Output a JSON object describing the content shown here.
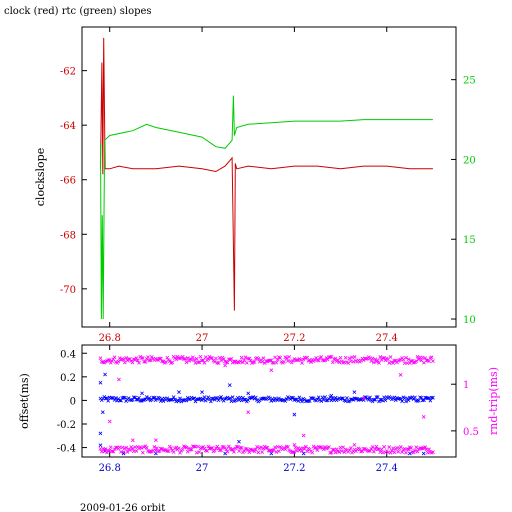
{
  "figure": {
    "title": "clock (red) rtc (green) slopes",
    "footer": "2009-01-26 orbit"
  },
  "chart_data": [
    {
      "type": "line",
      "title": "clock (red) rtc (green) slopes",
      "xlabel": "",
      "ylabel": "clockslope",
      "y2label": "",
      "xlim": [
        26.74,
        27.55
      ],
      "ylim": [
        -71.4,
        -60.4
      ],
      "y2lim": [
        9.5,
        28.3
      ],
      "x_ticks": [
        26.8,
        27,
        27.2,
        27.4
      ],
      "y_ticks": [
        -62,
        -64,
        -66,
        -68,
        -70
      ],
      "y2_ticks": [
        25,
        20,
        15,
        10
      ],
      "grid": false,
      "colors": {
        "axes": "#000000",
        "left_axis": "#cc0000",
        "right_axis": "#00cc00",
        "x_ticks": "#cc0000"
      },
      "series": [
        {
          "name": "clock",
          "axis": "left",
          "color": "#cc0000",
          "x": [
            26.78,
            26.783,
            26.785,
            26.787,
            26.79,
            26.8,
            26.82,
            26.85,
            26.9,
            26.95,
            27.0,
            27.03,
            27.05,
            27.065,
            27.07,
            27.072,
            27.075,
            27.1,
            27.15,
            27.2,
            27.25,
            27.3,
            27.35,
            27.4,
            27.45,
            27.5
          ],
          "y": [
            -65.6,
            -61.7,
            -65.8,
            -60.8,
            -65.6,
            -65.6,
            -65.5,
            -65.6,
            -65.6,
            -65.5,
            -65.6,
            -65.7,
            -65.5,
            -65.2,
            -70.8,
            -65.4,
            -65.6,
            -65.5,
            -65.6,
            -65.5,
            -65.5,
            -65.6,
            -65.5,
            -65.5,
            -65.6,
            -65.6
          ]
        },
        {
          "name": "rtc",
          "axis": "right",
          "color": "#00cc00",
          "x": [
            26.78,
            26.782,
            26.784,
            26.786,
            26.789,
            26.8,
            26.85,
            26.88,
            26.9,
            26.95,
            27.0,
            27.03,
            27.05,
            27.065,
            27.068,
            27.07,
            27.075,
            27.1,
            27.15,
            27.2,
            27.25,
            27.3,
            27.35,
            27.4,
            27.45,
            27.5
          ],
          "y": [
            21.0,
            10.0,
            16.5,
            10.0,
            21.2,
            21.5,
            21.8,
            22.2,
            22.0,
            21.7,
            21.4,
            20.8,
            20.7,
            21.2,
            24.0,
            21.5,
            22.0,
            22.2,
            22.3,
            22.4,
            22.4,
            22.4,
            22.5,
            22.5,
            22.5,
            22.5
          ]
        }
      ]
    },
    {
      "type": "scatter",
      "xlabel": "",
      "ylabel": "offset(ms)",
      "y2label": "rnd-trip(ms)",
      "xlim": [
        26.74,
        27.55
      ],
      "ylim": [
        -0.48,
        0.47
      ],
      "y2lim": [
        0.22,
        1.42
      ],
      "x_ticks": [
        26.8,
        27,
        27.2,
        27.4
      ],
      "y_ticks": [
        0.4,
        0.2,
        0,
        -0.2,
        -0.4
      ],
      "y2_ticks": [
        1,
        0.5
      ],
      "grid": false,
      "colors": {
        "axes": "#000000",
        "left_axis": "#000000",
        "right_axis": "#ff00ff",
        "x_ticks": "#0000cc"
      },
      "series": [
        {
          "name": "offset",
          "axis": "left",
          "color": "#0000ff",
          "marker": "x",
          "band": {
            "x_start": 26.78,
            "x_end": 27.5,
            "y_center": 0.01,
            "spread": 0.02
          },
          "outliers": {
            "x": [
              26.78,
              26.78,
              26.78,
              26.785,
              26.79,
              26.79,
              26.83,
              26.87,
              26.9,
              26.95,
              27.0,
              27.05,
              27.06,
              27.08,
              27.1,
              27.15,
              27.2,
              27.22,
              27.28,
              27.33,
              27.45,
              27.48
            ],
            "y": [
              -0.28,
              -0.38,
              0.15,
              -0.1,
              0.22,
              -0.43,
              -0.45,
              0.06,
              -0.45,
              0.07,
              0.07,
              -0.45,
              0.13,
              -0.35,
              0.06,
              -0.45,
              -0.12,
              -0.45,
              0.04,
              0.07,
              -0.45,
              -0.45
            ]
          }
        },
        {
          "name": "rnd-trip",
          "axis": "right",
          "color": "#ff00ff",
          "marker": "x",
          "bands": [
            {
              "x_start": 26.78,
              "x_end": 27.5,
              "y_center": 1.26,
              "spread": 0.035
            },
            {
              "x_start": 26.78,
              "x_end": 27.5,
              "y_center": 0.3,
              "spread": 0.035
            }
          ],
          "outliers": {
            "x": [
              26.8,
              26.82,
              26.85,
              26.9,
              27.05,
              27.1,
              27.15,
              27.2,
              27.22,
              27.33,
              27.35,
              27.43,
              27.48
            ],
            "y": [
              0.6,
              1.05,
              0.4,
              0.4,
              1.2,
              0.7,
              1.15,
              0.35,
              0.45,
              0.35,
              0.85,
              1.1,
              0.65
            ]
          }
        }
      ]
    }
  ]
}
